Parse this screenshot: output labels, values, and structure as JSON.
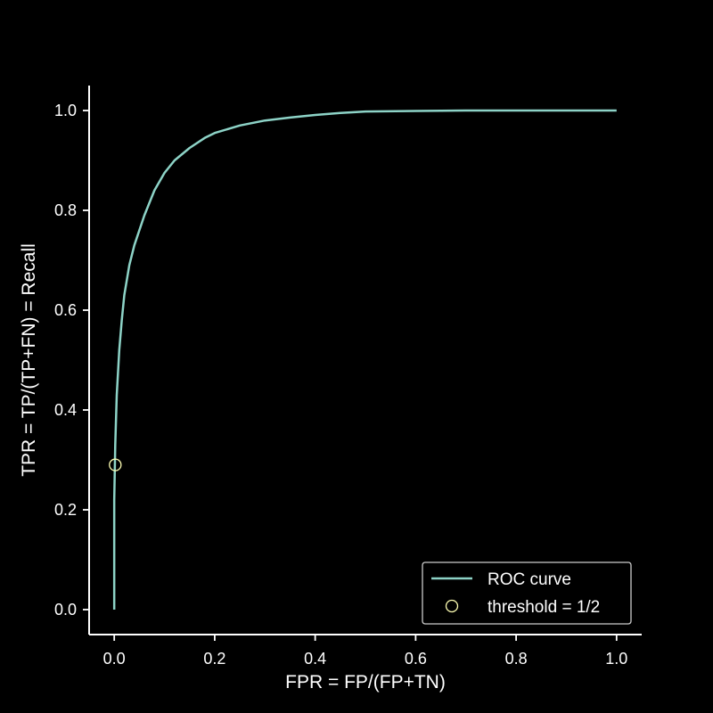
{
  "chart_data": {
    "type": "line",
    "xlabel": "FPR = FP/(FP+TN)",
    "ylabel": "TPR = TP/(TP+FN) = Recall",
    "xlim": [
      -0.05,
      1.05
    ],
    "ylim": [
      -0.05,
      1.05
    ],
    "xticks": [
      "0.0",
      "0.2",
      "0.4",
      "0.6",
      "0.8",
      "1.0"
    ],
    "yticks": [
      "0.0",
      "0.2",
      "0.4",
      "0.6",
      "0.8",
      "1.0"
    ],
    "grid": false,
    "legend_position": "bottom-right",
    "series": [
      {
        "name": "ROC curve",
        "color": "#8dd3c7",
        "x": [
          0.0,
          0.0,
          0.002,
          0.005,
          0.01,
          0.015,
          0.02,
          0.03,
          0.04,
          0.05,
          0.06,
          0.08,
          0.1,
          0.12,
          0.15,
          0.18,
          0.2,
          0.25,
          0.3,
          0.35,
          0.4,
          0.45,
          0.5,
          0.6,
          0.7,
          0.8,
          0.9,
          1.0
        ],
        "y": [
          0.0,
          0.22,
          0.33,
          0.43,
          0.52,
          0.58,
          0.63,
          0.69,
          0.73,
          0.76,
          0.79,
          0.84,
          0.875,
          0.9,
          0.925,
          0.945,
          0.955,
          0.97,
          0.98,
          0.986,
          0.991,
          0.995,
          0.998,
          0.999,
          1.0,
          1.0,
          1.0,
          1.0
        ]
      }
    ],
    "markers": [
      {
        "name": "threshold = 1/2",
        "x": 0.002,
        "y": 0.29,
        "color": "#ffffb3"
      }
    ]
  }
}
